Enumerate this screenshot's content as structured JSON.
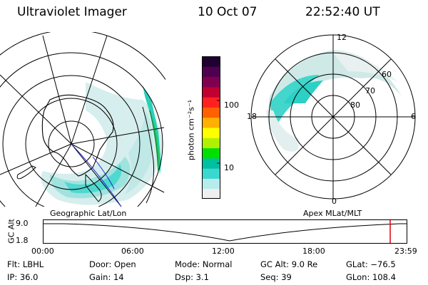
{
  "header": {
    "title": "Ultraviolet Imager",
    "date": "10 Oct 07",
    "time": "22:52:40 UT"
  },
  "left_panel": {
    "label": "Geographic Lat/Lon"
  },
  "right_panel": {
    "label": "Apex MLat/MLT",
    "mlt_labels": {
      "top": "12",
      "left": "18",
      "right": "6",
      "bottom": "0"
    },
    "lat_labels": [
      "60",
      "70",
      "80"
    ]
  },
  "colorbar": {
    "unit_label": "photon cm⁻²s⁻¹",
    "ticks": [
      "100",
      "10"
    ],
    "colors": [
      "#efefef",
      "#b8ecec",
      "#3ad8d0",
      "#00c0a0",
      "#00e000",
      "#b0f000",
      "#ffff00",
      "#ffb000",
      "#ff6000",
      "#ff2020",
      "#c00030",
      "#800050",
      "#500050",
      "#200030"
    ]
  },
  "timeline": {
    "y_axis_label": "GC Alt",
    "y_ticks": [
      "9.0",
      "1.8"
    ],
    "x_ticks": [
      "00:00",
      "06:00",
      "12:00",
      "18:00",
      "23:59"
    ],
    "current_marker_color": "#e00000"
  },
  "info": {
    "flt": "Flt: LBHL",
    "ip": "IP: 36.0",
    "door": "Door: Open",
    "gain": "Gain: 14",
    "mode": "Mode: Normal",
    "dsp": "Dsp:    3.1",
    "gcalt": "GC Alt: 9.0 Re",
    "seq": "Seq: 39",
    "glat": "GLat: −76.5",
    "glon": "GLon: 108.4"
  }
}
